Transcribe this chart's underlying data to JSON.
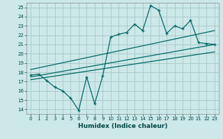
{
  "xlabel": "Humidex (Indice chaleur)",
  "bg_color": "#cce8e8",
  "grid_color": "#aacccc",
  "line_color": "#006666",
  "xlim": [
    -0.5,
    23.5
  ],
  "ylim": [
    13.5,
    25.5
  ],
  "xticks": [
    0,
    1,
    2,
    3,
    4,
    5,
    6,
    7,
    8,
    9,
    10,
    11,
    12,
    13,
    14,
    15,
    16,
    17,
    18,
    19,
    20,
    21,
    22,
    23
  ],
  "yticks": [
    14,
    15,
    16,
    17,
    18,
    19,
    20,
    21,
    22,
    23,
    24,
    25
  ],
  "line1_x": [
    0,
    1,
    2,
    3,
    4,
    5,
    6,
    7,
    8,
    9,
    10,
    11,
    12,
    13,
    14,
    15,
    16,
    17,
    18,
    19,
    20,
    21,
    22,
    23
  ],
  "line1_y": [
    17.7,
    17.8,
    17.1,
    16.4,
    16.0,
    15.2,
    13.9,
    17.5,
    14.6,
    17.6,
    21.8,
    22.1,
    22.3,
    23.2,
    22.5,
    25.2,
    24.7,
    22.2,
    23.0,
    22.7,
    23.6,
    21.2,
    21.1,
    21.0
  ],
  "line2_x": [
    0,
    23
  ],
  "line2_y": [
    17.5,
    21.0
  ],
  "line3_x": [
    0,
    23
  ],
  "line3_y": [
    18.3,
    22.5
  ],
  "line4_x": [
    0,
    23
  ],
  "line4_y": [
    17.2,
    20.2
  ]
}
